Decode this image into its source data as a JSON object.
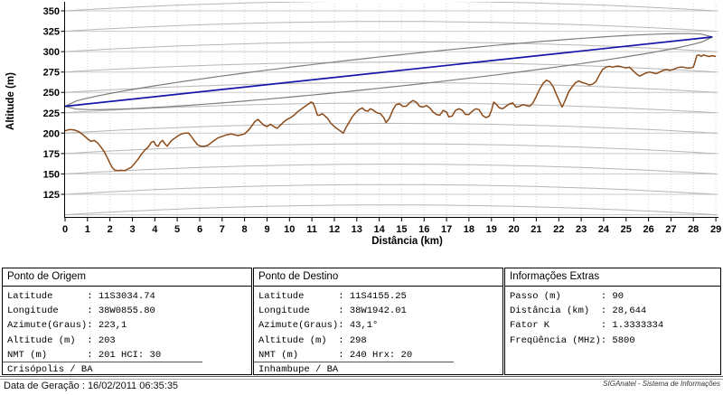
{
  "chart": {
    "y_axis_label": "Altitude (m)",
    "x_axis_label": "Distância (km)"
  },
  "chart_data": {
    "type": "line",
    "title": "",
    "xlabel": "Distância (km)",
    "ylabel": "Altitude (m)",
    "xlim": [
      0,
      29
    ],
    "ylim_approx": [
      100,
      358
    ],
    "x_ticks": [
      0,
      1,
      2,
      3,
      4,
      5,
      6,
      7,
      8,
      9,
      10,
      11,
      12,
      13,
      14,
      15,
      16,
      17,
      18,
      19,
      20,
      21,
      22,
      23,
      24,
      25,
      26,
      27,
      28,
      29
    ],
    "y_ticks": [
      350,
      325,
      300,
      275,
      250,
      225,
      200,
      175,
      150,
      125
    ],
    "grid": "curved-earth reference arcs + flat 25 m gridlines + dotted verticals each km",
    "gridline_altitudes": [
      100,
      125,
      150,
      175,
      200,
      225,
      250,
      275,
      300,
      325,
      350
    ],
    "earth_bulge_max_m": 12,
    "colors": {
      "terrain": "#8B4A18",
      "line_of_sight": "#1515AA",
      "fresnel": "#7D7D7D",
      "grid_flat": "#C9C9C9",
      "grid_arc": "#B6B6B6",
      "grid_vertical": "#D6D6D6",
      "axis": "#000000"
    },
    "series": [
      {
        "name": "perfil-do-terreno",
        "type": "line",
        "points": [
          [
            0,
            203
          ],
          [
            0.2,
            204.5
          ],
          [
            0.4,
            204
          ],
          [
            0.6,
            202
          ],
          [
            0.8,
            198
          ],
          [
            1,
            193
          ],
          [
            1.15,
            190
          ],
          [
            1.3,
            191
          ],
          [
            1.45,
            188
          ],
          [
            1.6,
            183
          ],
          [
            1.75,
            177
          ],
          [
            1.9,
            169
          ],
          [
            2,
            163
          ],
          [
            2.1,
            158
          ],
          [
            2.2,
            155
          ],
          [
            2.35,
            154
          ],
          [
            2.5,
            154.5
          ],
          [
            2.65,
            154
          ],
          [
            2.8,
            156
          ],
          [
            2.95,
            158
          ],
          [
            3.1,
            163
          ],
          [
            3.25,
            168
          ],
          [
            3.4,
            174
          ],
          [
            3.55,
            179
          ],
          [
            3.7,
            183
          ],
          [
            3.85,
            189
          ],
          [
            3.95,
            190
          ],
          [
            4.05,
            185
          ],
          [
            4.15,
            184
          ],
          [
            4.25,
            189
          ],
          [
            4.35,
            191
          ],
          [
            4.45,
            187
          ],
          [
            4.55,
            184
          ],
          [
            4.65,
            188
          ],
          [
            4.75,
            191
          ],
          [
            4.9,
            194
          ],
          [
            5.05,
            197
          ],
          [
            5.2,
            199
          ],
          [
            5.35,
            200
          ],
          [
            5.5,
            200
          ],
          [
            5.6,
            197
          ],
          [
            5.75,
            191
          ],
          [
            5.9,
            186
          ],
          [
            6.05,
            184
          ],
          [
            6.2,
            184
          ],
          [
            6.35,
            185
          ],
          [
            6.5,
            188
          ],
          [
            6.65,
            191
          ],
          [
            6.8,
            194
          ],
          [
            7,
            196
          ],
          [
            7.2,
            198
          ],
          [
            7.4,
            199
          ],
          [
            7.55,
            198
          ],
          [
            7.7,
            197
          ],
          [
            7.85,
            198
          ],
          [
            8,
            199
          ],
          [
            8.15,
            203
          ],
          [
            8.3,
            208
          ],
          [
            8.45,
            214
          ],
          [
            8.6,
            217
          ],
          [
            8.7,
            214
          ],
          [
            8.85,
            210
          ],
          [
            9,
            208
          ],
          [
            9.15,
            211
          ],
          [
            9.3,
            208
          ],
          [
            9.45,
            206
          ],
          [
            9.6,
            210
          ],
          [
            9.75,
            214
          ],
          [
            9.9,
            217
          ],
          [
            10.05,
            219
          ],
          [
            10.2,
            222
          ],
          [
            10.35,
            226
          ],
          [
            10.5,
            229
          ],
          [
            10.65,
            232
          ],
          [
            10.8,
            235
          ],
          [
            10.95,
            238
          ],
          [
            11.05,
            237
          ],
          [
            11.15,
            230
          ],
          [
            11.25,
            222
          ],
          [
            11.35,
            222
          ],
          [
            11.45,
            224
          ],
          [
            11.55,
            222
          ],
          [
            11.7,
            218
          ],
          [
            11.85,
            212
          ],
          [
            12,
            208
          ],
          [
            12.15,
            205
          ],
          [
            12.3,
            202
          ],
          [
            12.4,
            200
          ],
          [
            12.5,
            206
          ],
          [
            12.65,
            213
          ],
          [
            12.8,
            220
          ],
          [
            12.95,
            225
          ],
          [
            13.1,
            229
          ],
          [
            13.25,
            231
          ],
          [
            13.35,
            228
          ],
          [
            13.5,
            227
          ],
          [
            13.6,
            230
          ],
          [
            13.75,
            228
          ],
          [
            13.9,
            225
          ],
          [
            14.05,
            224
          ],
          [
            14.2,
            219
          ],
          [
            14.3,
            213
          ],
          [
            14.45,
            218
          ],
          [
            14.6,
            228
          ],
          [
            14.75,
            235
          ],
          [
            14.9,
            236
          ],
          [
            15.05,
            233
          ],
          [
            15.2,
            233
          ],
          [
            15.35,
            237
          ],
          [
            15.5,
            240
          ],
          [
            15.65,
            238
          ],
          [
            15.8,
            233
          ],
          [
            15.95,
            232
          ],
          [
            16.1,
            234
          ],
          [
            16.25,
            231
          ],
          [
            16.4,
            226
          ],
          [
            16.55,
            223
          ],
          [
            16.7,
            222
          ],
          [
            16.85,
            228
          ],
          [
            17,
            226
          ],
          [
            17.1,
            220
          ],
          [
            17.25,
            221
          ],
          [
            17.4,
            228
          ],
          [
            17.55,
            230
          ],
          [
            17.7,
            228
          ],
          [
            17.85,
            223
          ],
          [
            18,
            223
          ],
          [
            18.15,
            227
          ],
          [
            18.3,
            230
          ],
          [
            18.45,
            229
          ],
          [
            18.6,
            222
          ],
          [
            18.75,
            219
          ],
          [
            18.9,
            221
          ],
          [
            19,
            228
          ],
          [
            19.1,
            238
          ],
          [
            19.2,
            236
          ],
          [
            19.35,
            231
          ],
          [
            19.5,
            230
          ],
          [
            19.65,
            233
          ],
          [
            19.8,
            236
          ],
          [
            19.95,
            237
          ],
          [
            20.1,
            232
          ],
          [
            20.25,
            233
          ],
          [
            20.4,
            235
          ],
          [
            20.55,
            234
          ],
          [
            20.7,
            233
          ],
          [
            20.85,
            237
          ],
          [
            21,
            245
          ],
          [
            21.15,
            254
          ],
          [
            21.3,
            261
          ],
          [
            21.45,
            265
          ],
          [
            21.6,
            263
          ],
          [
            21.75,
            257
          ],
          [
            21.9,
            247
          ],
          [
            22.05,
            238
          ],
          [
            22.15,
            232
          ],
          [
            22.3,
            241
          ],
          [
            22.45,
            251
          ],
          [
            22.6,
            257
          ],
          [
            22.75,
            262
          ],
          [
            22.9,
            264
          ],
          [
            23.05,
            262
          ],
          [
            23.2,
            261
          ],
          [
            23.35,
            259
          ],
          [
            23.5,
            260
          ],
          [
            23.65,
            263
          ],
          [
            23.8,
            271
          ],
          [
            23.95,
            278
          ],
          [
            24.1,
            281
          ],
          [
            24.25,
            282
          ],
          [
            24.4,
            281
          ],
          [
            24.55,
            282
          ],
          [
            24.7,
            282
          ],
          [
            24.85,
            281
          ],
          [
            25,
            280
          ],
          [
            25.15,
            281
          ],
          [
            25.3,
            277
          ],
          [
            25.45,
            273
          ],
          [
            25.6,
            270
          ],
          [
            25.75,
            272
          ],
          [
            25.9,
            274
          ],
          [
            26.05,
            275
          ],
          [
            26.2,
            274
          ],
          [
            26.35,
            273
          ],
          [
            26.5,
            275
          ],
          [
            26.65,
            277
          ],
          [
            26.8,
            278
          ],
          [
            26.95,
            277
          ],
          [
            27.1,
            278
          ],
          [
            27.25,
            280
          ],
          [
            27.4,
            281
          ],
          [
            27.55,
            281
          ],
          [
            27.7,
            280
          ],
          [
            27.85,
            280
          ],
          [
            28,
            281
          ],
          [
            28.08,
            288
          ],
          [
            28.15,
            295
          ],
          [
            28.25,
            296
          ],
          [
            28.35,
            294
          ],
          [
            28.45,
            296
          ],
          [
            28.55,
            295
          ],
          [
            28.7,
            294
          ],
          [
            28.85,
            295
          ],
          [
            29,
            294
          ]
        ]
      },
      {
        "name": "linha-de-visada",
        "type": "line",
        "start": [
          0,
          233
        ],
        "end": [
          28.85,
          318
        ]
      },
      {
        "name": "elipse-de-fresnel",
        "type": "ellipse-around-los",
        "max_radius_m": 19.2
      }
    ]
  },
  "panels": [
    {
      "title": "Ponto de Origem",
      "separator_before_last": true,
      "lines": [
        "Latitude      : 11S3034.74",
        "Longitude     : 38W0855.80",
        "Azimute(Graus): 223,1",
        "Altitude (m)  : 203",
        "NMT (m)       : 201 HCI: 30",
        "Crisópolis / BA"
      ]
    },
    {
      "title": "Ponto de Destino",
      "separator_before_last": true,
      "lines": [
        "Latitude      : 11S4155.25",
        "Longitude     : 38W1942.01",
        "Azimute(Graus): 43,1°",
        "Altitude (m)  : 298",
        "NMT (m)       : 240 Hrx: 20",
        "Inhambupe / BA"
      ]
    },
    {
      "title": "Informações Extras",
      "separator_before_last": false,
      "lines": [
        "Passo (m)       : 90",
        "Distância (km)  : 28,644",
        "Fator K         : 1.3333334",
        "Freqüência (MHz): 5800"
      ]
    }
  ],
  "footer": {
    "generated": "Data de Geração : 16/02/2011 06:35:35",
    "app": "SIGAnatel - Sistema de Informações"
  }
}
